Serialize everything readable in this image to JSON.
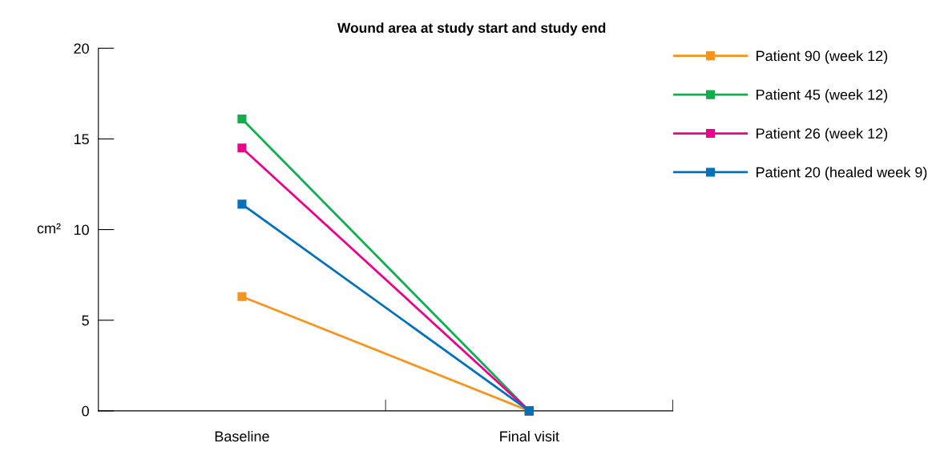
{
  "chart_data": {
    "type": "line",
    "title": "Wound area at study start and study end",
    "ylabel": "cm²",
    "categories": [
      "Baseline",
      "Final visit"
    ],
    "series": [
      {
        "name": "Patient 90 (week 12)",
        "color": "#f7941d",
        "values": [
          6.3,
          0
        ]
      },
      {
        "name": "Patient 45 (week 12)",
        "color": "#0db04b",
        "values": [
          16.1,
          0
        ]
      },
      {
        "name": "Patient 26 (week 12)",
        "color": "#ec008c",
        "values": [
          14.5,
          0
        ]
      },
      {
        "name": "Patient 20 (healed week 9)",
        "color": "#0071bc",
        "values": [
          11.4,
          0
        ]
      }
    ],
    "ylim": [
      0,
      20
    ],
    "yticks": [
      0,
      5,
      10,
      15,
      20
    ],
    "marker": "square",
    "line_style": "solid",
    "legend": "right",
    "grid": false
  }
}
